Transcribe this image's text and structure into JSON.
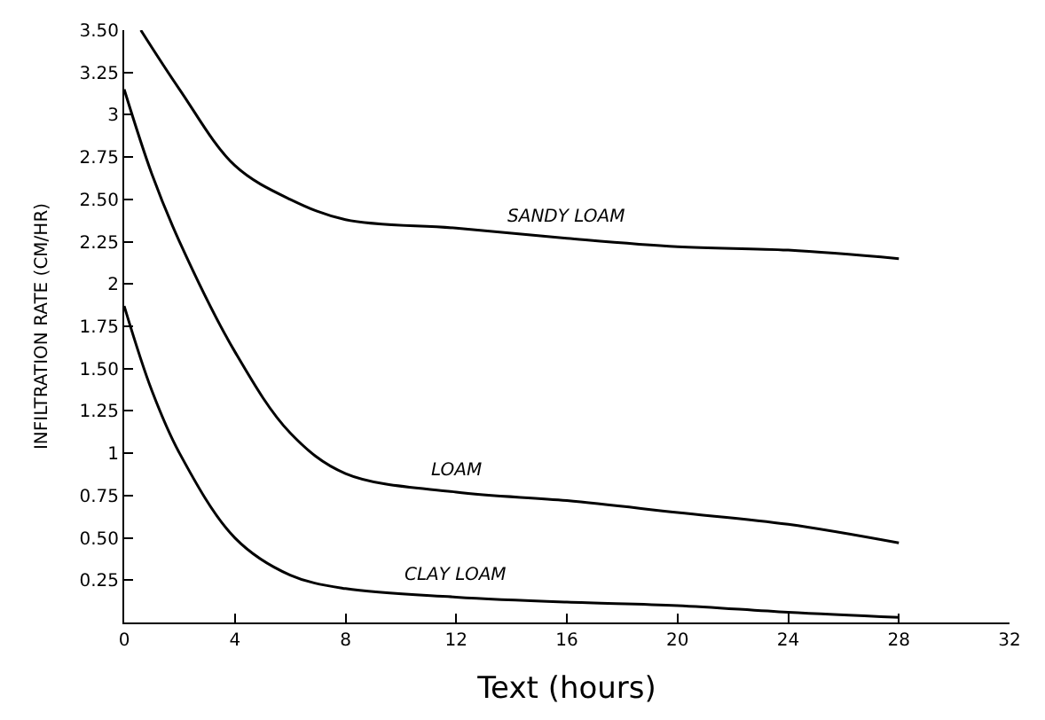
{
  "chart_data": {
    "type": "line",
    "xlabel": "Text (hours)",
    "ylabel": "INFILTRATION RATE (CM/HR)",
    "xlim": [
      0,
      32
    ],
    "xticks": [
      0,
      4,
      8,
      12,
      16,
      20,
      24,
      28,
      32
    ],
    "ylim": [
      0,
      3.5
    ],
    "yticks": [
      0.25,
      {
        "value": 0.5,
        "label": "0.50"
      },
      0.75,
      1,
      1.25,
      {
        "value": 1.5,
        "label": "1.50"
      },
      1.75,
      2,
      2.25,
      {
        "value": 2.5,
        "label": "2.50"
      },
      2.75,
      3,
      3.25,
      {
        "value": 3.5,
        "label": "3.50"
      }
    ],
    "legend": false,
    "marker": "none",
    "line_style": "solid",
    "series": [
      {
        "name": "SANDY LOAM",
        "color": "#000000",
        "x": [
          0.6,
          2,
          4,
          6,
          8,
          12,
          16,
          20,
          24,
          28
        ],
        "values": [
          3.5,
          3.15,
          2.7,
          2.5,
          2.38,
          2.33,
          2.27,
          2.22,
          2.2,
          2.15
        ]
      },
      {
        "name": "LOAM",
        "color": "#000000",
        "x": [
          0,
          1,
          2,
          4,
          6,
          8,
          12,
          16,
          20,
          24,
          28
        ],
        "values": [
          3.15,
          2.65,
          2.25,
          1.6,
          1.12,
          0.88,
          0.77,
          0.72,
          0.65,
          0.58,
          0.47
        ]
      },
      {
        "name": "CLAY LOAM",
        "color": "#000000",
        "x": [
          0,
          1,
          2,
          4,
          6,
          8,
          12,
          16,
          20,
          24,
          28
        ],
        "values": [
          1.87,
          1.37,
          1.0,
          0.5,
          0.28,
          0.2,
          0.15,
          0.12,
          0.1,
          0.06,
          0.03
        ]
      }
    ]
  }
}
